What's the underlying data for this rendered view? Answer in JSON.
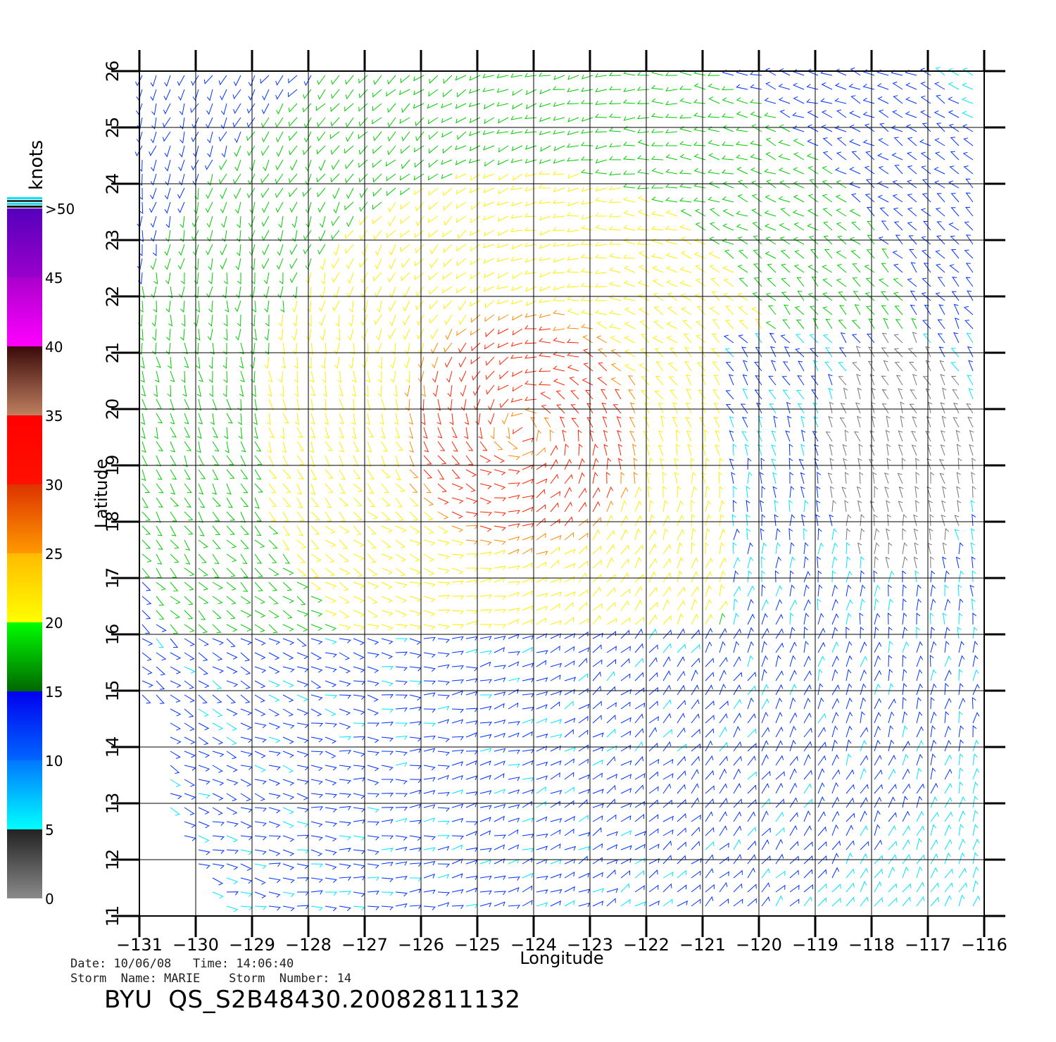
{
  "plot": {
    "xlabel": "Longitude",
    "ylabel": "Latitude",
    "lon_range": [
      -131,
      -116
    ],
    "lat_range": [
      11,
      26
    ],
    "lon_ticks": [
      "−131",
      "−130",
      "−129",
      "−128",
      "−127",
      "−126",
      "−125",
      "−124",
      "−123",
      "−122",
      "−121",
      "−120",
      "−119",
      "−118",
      "−117",
      "−116"
    ],
    "lat_ticks": [
      "11",
      "12",
      "13",
      "14",
      "15",
      "16",
      "17",
      "18",
      "19",
      "20",
      "21",
      "22",
      "23",
      "24",
      "25",
      "26"
    ],
    "grid": true,
    "storm_center": {
      "lon": -124.2,
      "lat": 19.6
    },
    "wind_field": "cyclonic vector field around storm center; strongest 30-35 kt near center; weak (0-5 kt) region near lon -118 to -116, lat 17-21"
  },
  "colorbar": {
    "title": "knots",
    "labels": [
      ">50",
      "45",
      "40",
      "35",
      "30",
      "25",
      "20",
      "15",
      "10",
      "5",
      "0"
    ],
    "colors": {
      "0-5": "#777777",
      "5-10": "#00e5ff",
      "10-15": "#0033ff",
      "15-20": "#00cc00",
      "20-25": "#ffee00",
      "25-30": "#ff8800",
      "30-35": "#ff2200",
      "35-40": "#8b4513",
      "40-45": "#ff00ff",
      "45-50": "#9900cc"
    }
  },
  "footer": {
    "line1": "Date: 10/06/08   Time: 14:06:40",
    "line2": "Storm  Name: MARIE    Storm  Number: 14",
    "title": "BYU  QS_S2B48430.20082811132"
  }
}
